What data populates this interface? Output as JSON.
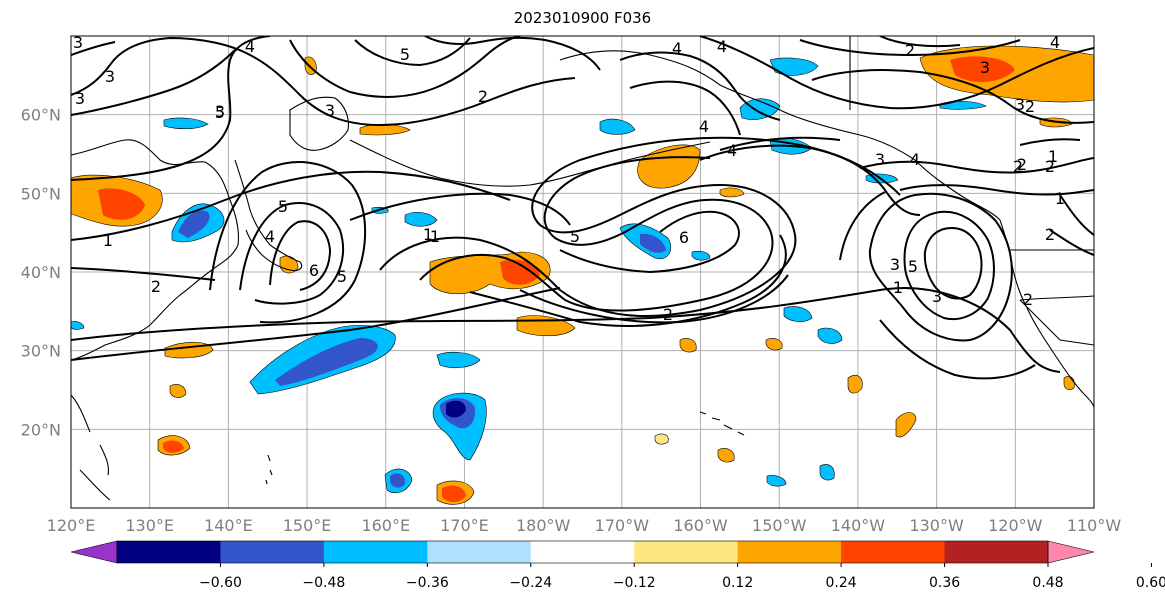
{
  "title": "2023010900 F036",
  "map": {
    "lon_range": [
      "120°E",
      "110°W"
    ],
    "lat_range": [
      "10°N",
      "70°N"
    ],
    "lon_ticks": [
      "120°E",
      "130°E",
      "140°E",
      "150°E",
      "160°E",
      "170°E",
      "180°W",
      "170°W",
      "160°W",
      "150°W",
      "140°W",
      "130°W",
      "120°W",
      "110°W"
    ],
    "lat_ticks": [
      "20°N",
      "30°N",
      "40°N",
      "50°N",
      "60°N"
    ],
    "grid": true
  },
  "colorbar": {
    "ticks": [
      "−0.60",
      "−0.48",
      "−0.36",
      "−0.24",
      "−0.12",
      "0.12",
      "0.24",
      "0.36",
      "0.48",
      "0.60"
    ],
    "colors": [
      "#9933cc",
      "#000080",
      "#3355cc",
      "#00bfff",
      "#b0e0ff",
      "#ffffff",
      "#ffe680",
      "#ffa500",
      "#ff4400",
      "#b22222",
      "#ff88aa"
    ],
    "extend": "both"
  },
  "contour_labels": [
    "3",
    "4",
    "3",
    "3",
    "5",
    "4",
    "3",
    "2",
    "5",
    "4",
    "4",
    "3",
    "4",
    "2",
    "2",
    "2",
    "3",
    "3",
    "3",
    "2",
    "1",
    "1",
    "2",
    "2",
    "4",
    "5",
    "4",
    "5",
    "6",
    "1",
    "2",
    "2",
    "3",
    "5",
    "6",
    "4",
    "1",
    "1",
    "2",
    "3",
    "5",
    "1"
  ],
  "colors": {
    "contour": "#000000",
    "coast": "#000000",
    "grid": "#b0b0b0"
  }
}
